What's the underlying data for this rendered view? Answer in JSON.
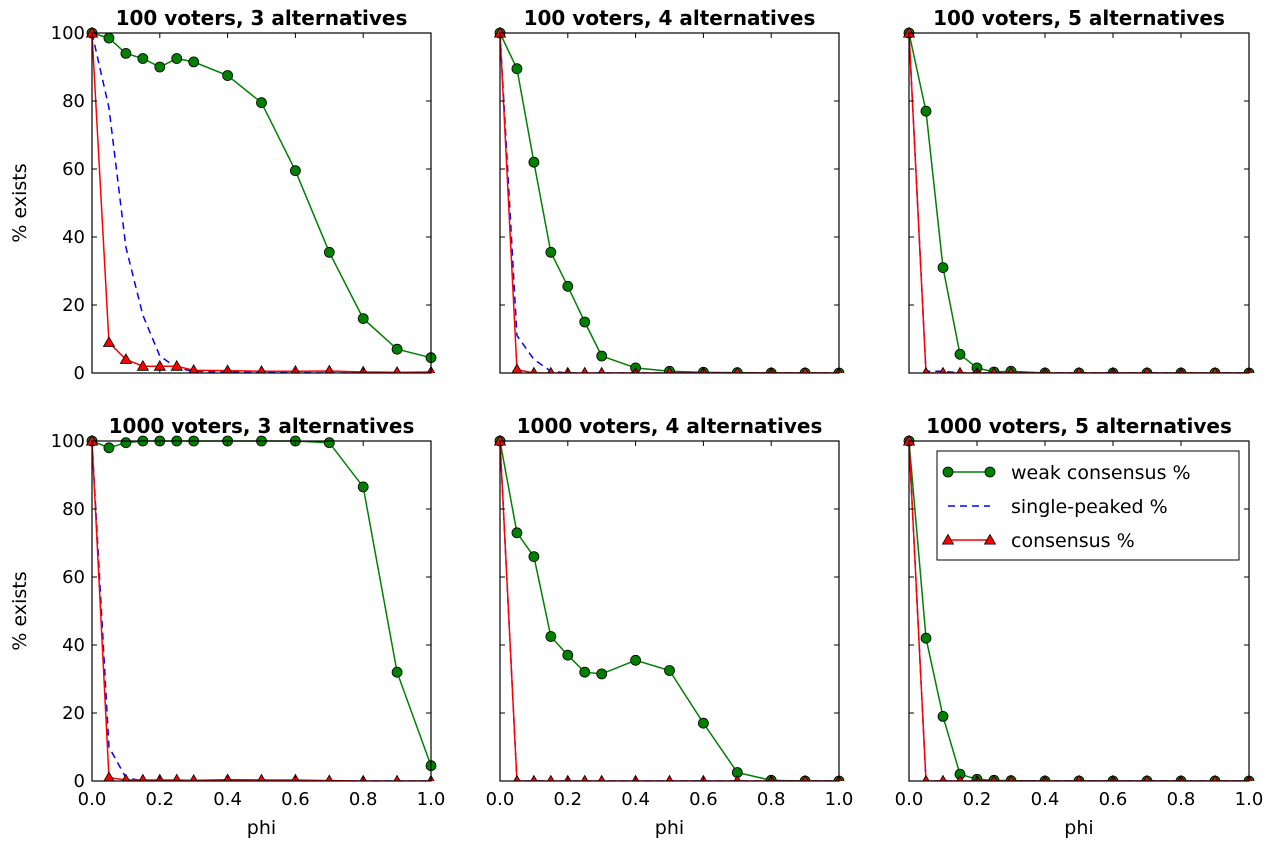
{
  "chart_data": {
    "type": "line",
    "x_tick_labels": [
      "0.0",
      "0.2",
      "0.4",
      "0.6",
      "0.8",
      "1.0"
    ],
    "y_tick_labels": [
      "0",
      "20",
      "40",
      "60",
      "80",
      "100"
    ],
    "ylabel": "% exists",
    "xlabel": "phi",
    "xlim": [
      0,
      1
    ],
    "ylim": [
      0,
      100
    ],
    "legend": {
      "placement": "upper-right of bottom-right panel",
      "entries": [
        "weak consensus %",
        "single-peaked %",
        "consensus %"
      ]
    },
    "colors": {
      "weak consensus %": "#008000",
      "single-peaked %": "#0000ff",
      "consensus %": "#ff0000"
    },
    "panels": [
      {
        "title": "100 voters, 3 alternatives",
        "series": [
          {
            "name": "weak consensus %",
            "x": [
              0,
              0.05,
              0.1,
              0.15,
              0.2,
              0.25,
              0.3,
              0.4,
              0.5,
              0.6,
              0.7,
              0.8,
              0.9,
              1.0
            ],
            "y": [
              100,
              98.5,
              94,
              92.5,
              90,
              92.5,
              91.5,
              87.5,
              79.5,
              59.5,
              35.5,
              16,
              7,
              4.5
            ]
          },
          {
            "name": "single-peaked %",
            "x": [
              0,
              0.05,
              0.1,
              0.15,
              0.2,
              0.25,
              0.3,
              0.4,
              0.5,
              0.6,
              0.7,
              0.8,
              0.9,
              1.0
            ],
            "y": [
              100,
              78,
              37,
              17,
              5,
              1.5,
              0.5,
              0.3,
              0.2,
              0.1,
              0,
              0,
              0,
              0
            ]
          },
          {
            "name": "consensus %",
            "x": [
              0,
              0.05,
              0.1,
              0.15,
              0.2,
              0.25,
              0.3,
              0.4,
              0.5,
              0.6,
              0.7,
              0.8,
              0.9,
              1.0
            ],
            "y": [
              100,
              9,
              4,
              2,
              2,
              2,
              0.8,
              0.7,
              0.5,
              0.5,
              0.6,
              0.3,
              0.2,
              0.3
            ]
          }
        ]
      },
      {
        "title": "100 voters, 4 alternatives",
        "series": [
          {
            "name": "weak consensus %",
            "x": [
              0,
              0.05,
              0.1,
              0.15,
              0.2,
              0.25,
              0.3,
              0.4,
              0.5,
              0.6,
              0.7,
              0.8,
              0.9,
              1.0
            ],
            "y": [
              100,
              89.5,
              62,
              35.5,
              25.5,
              15,
              5,
              1.5,
              0.5,
              0.2,
              0.1,
              0,
              0,
              0
            ]
          },
          {
            "name": "single-peaked %",
            "x": [
              0,
              0.05,
              0.1,
              0.15,
              0.2,
              0.25,
              0.3,
              0.4,
              0.5,
              0.6,
              0.7,
              0.8,
              0.9,
              1.0
            ],
            "y": [
              100,
              11,
              4,
              0.5,
              0,
              0,
              0,
              0,
              0,
              0,
              0,
              0,
              0,
              0
            ]
          },
          {
            "name": "consensus %",
            "x": [
              0,
              0.05,
              0.1,
              0.15,
              0.2,
              0.25,
              0.3,
              0.4,
              0.5,
              0.6,
              0.7,
              0.8,
              0.9,
              1.0
            ],
            "y": [
              100,
              1,
              0,
              0,
              0,
              0,
              0,
              0,
              0,
              0,
              0,
              0,
              0,
              0
            ]
          }
        ]
      },
      {
        "title": "100 voters, 5 alternatives",
        "series": [
          {
            "name": "weak consensus %",
            "x": [
              0,
              0.05,
              0.1,
              0.15,
              0.2,
              0.25,
              0.3,
              0.4,
              0.5,
              0.6,
              0.7,
              0.8,
              0.9,
              1.0
            ],
            "y": [
              100,
              77,
              31,
              5.5,
              1.5,
              0.3,
              0.5,
              0,
              0,
              0,
              0,
              0,
              0,
              0
            ]
          },
          {
            "name": "single-peaked %",
            "x": [
              0,
              0.05,
              0.1,
              0.15,
              0.2,
              0.25,
              0.3,
              0.4,
              0.5,
              0.6,
              0.7,
              0.8,
              0.9,
              1.0
            ],
            "y": [
              100,
              0.5,
              0.5,
              0,
              0,
              0,
              0,
              0,
              0,
              0,
              0,
              0,
              0,
              0
            ]
          },
          {
            "name": "consensus %",
            "x": [
              0,
              0.05,
              0.1,
              0.15,
              0.2,
              0.25,
              0.3,
              0.4,
              0.5,
              0.6,
              0.7,
              0.8,
              0.9,
              1.0
            ],
            "y": [
              100,
              0,
              0,
              0,
              0,
              0,
              0,
              0,
              0,
              0,
              0,
              0,
              0,
              0
            ]
          }
        ]
      },
      {
        "title": "1000 voters, 3 alternatives",
        "series": [
          {
            "name": "weak consensus %",
            "x": [
              0,
              0.05,
              0.1,
              0.15,
              0.2,
              0.25,
              0.3,
              0.4,
              0.5,
              0.6,
              0.7,
              0.8,
              0.9,
              1.0
            ],
            "y": [
              100,
              98,
              99.5,
              100,
              100,
              100,
              100,
              100,
              100,
              100,
              99.5,
              86.5,
              32,
              4.5
            ]
          },
          {
            "name": "single-peaked %",
            "x": [
              0,
              0.05,
              0.1,
              0.15,
              0.2,
              0.25,
              0.3,
              0.4,
              0.5,
              0.6,
              0.7,
              0.8,
              0.9,
              1.0
            ],
            "y": [
              100,
              10,
              1,
              0,
              0,
              0,
              0,
              0,
              0,
              0,
              0,
              0,
              0,
              0
            ]
          },
          {
            "name": "consensus %",
            "x": [
              0,
              0.05,
              0.1,
              0.15,
              0.2,
              0.25,
              0.3,
              0.4,
              0.5,
              0.6,
              0.7,
              0.8,
              0.9,
              1.0
            ],
            "y": [
              100,
              1,
              0.3,
              0.3,
              0.3,
              0.3,
              0.2,
              0.4,
              0.3,
              0.3,
              0.1,
              0,
              0,
              0
            ]
          }
        ]
      },
      {
        "title": "1000 voters, 4 alternatives",
        "series": [
          {
            "name": "weak consensus %",
            "x": [
              0,
              0.05,
              0.1,
              0.15,
              0.2,
              0.25,
              0.3,
              0.4,
              0.5,
              0.6,
              0.7,
              0.8,
              0.9,
              1.0
            ],
            "y": [
              100,
              73,
              66,
              42.5,
              37,
              32,
              31.5,
              35.5,
              32.5,
              17,
              2.5,
              0.2,
              0,
              0
            ]
          },
          {
            "name": "single-peaked %",
            "x": [
              0,
              0.05,
              0.1,
              0.15,
              0.2,
              0.25,
              0.3,
              0.4,
              0.5,
              0.6,
              0.7,
              0.8,
              0.9,
              1.0
            ],
            "y": [
              100,
              0,
              0,
              0,
              0,
              0,
              0,
              0,
              0,
              0,
              0,
              0,
              0,
              0
            ]
          },
          {
            "name": "consensus %",
            "x": [
              0,
              0.05,
              0.1,
              0.15,
              0.2,
              0.25,
              0.3,
              0.4,
              0.5,
              0.6,
              0.7,
              0.8,
              0.9,
              1.0
            ],
            "y": [
              100,
              0,
              0,
              0,
              0,
              0,
              0,
              0,
              0,
              0,
              0,
              0,
              0,
              0
            ]
          }
        ]
      },
      {
        "title": "1000 voters, 5 alternatives",
        "series": [
          {
            "name": "weak consensus %",
            "x": [
              0,
              0.05,
              0.1,
              0.15,
              0.2,
              0.25,
              0.3,
              0.4,
              0.5,
              0.6,
              0.7,
              0.8,
              0.9,
              1.0
            ],
            "y": [
              100,
              42,
              19,
              2,
              0.5,
              0.2,
              0.1,
              0,
              0,
              0,
              0,
              0,
              0,
              0
            ]
          },
          {
            "name": "single-peaked %",
            "x": [
              0,
              0.05,
              0.1,
              0.15,
              0.2,
              0.25,
              0.3,
              0.4,
              0.5,
              0.6,
              0.7,
              0.8,
              0.9,
              1.0
            ],
            "y": [
              100,
              0,
              0,
              0,
              0,
              0,
              0,
              0,
              0,
              0,
              0,
              0,
              0,
              0
            ]
          },
          {
            "name": "consensus %",
            "x": [
              0,
              0.05,
              0.1,
              0.15,
              0.2,
              0.25,
              0.3,
              0.4,
              0.5,
              0.6,
              0.7,
              0.8,
              0.9,
              1.0
            ],
            "y": [
              100,
              0,
              0,
              0,
              0,
              0,
              0,
              0,
              0,
              0,
              0,
              0,
              0,
              0
            ]
          }
        ]
      }
    ]
  }
}
